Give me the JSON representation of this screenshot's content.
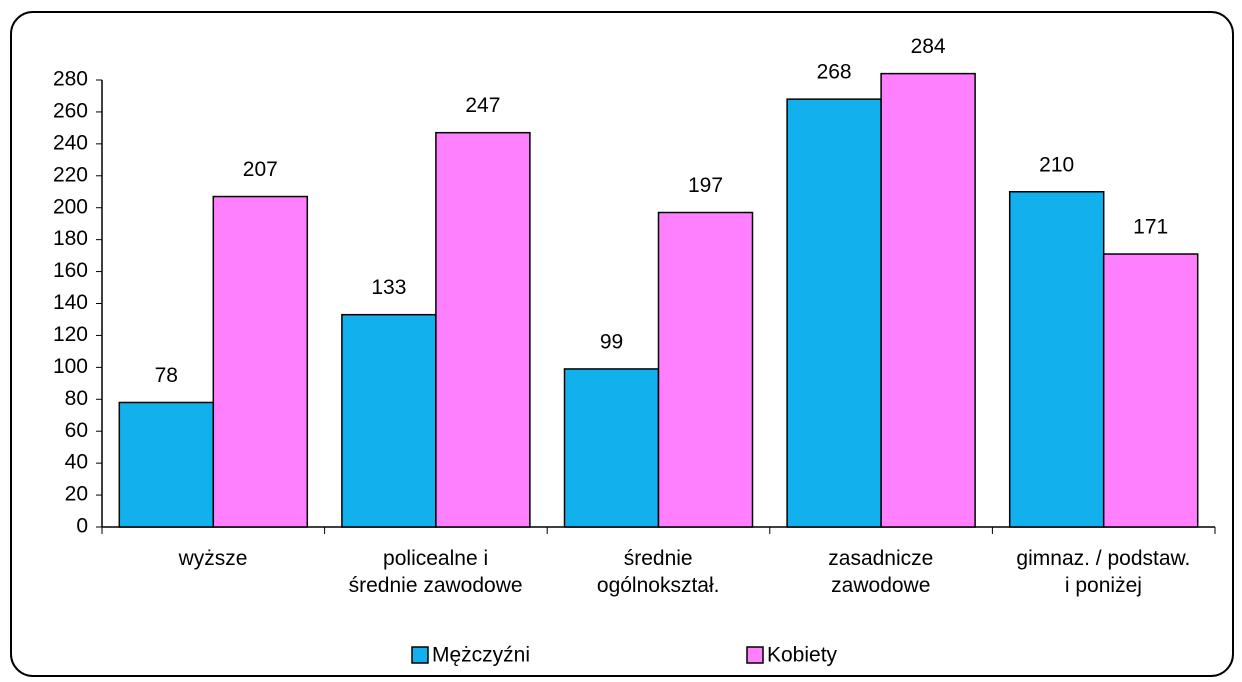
{
  "chart_data": {
    "type": "bar",
    "categories": [
      "wyższe",
      "policealne i\nśrednie zawodowe",
      "średnie\nogólnokształ.",
      "zasadnicze\nzawodowe",
      "gimnaz. / podstaw.\ni poniżej"
    ],
    "series": [
      {
        "name": "Mężczyźni",
        "color": "#12b0ec",
        "values": [
          78,
          133,
          99,
          268,
          210
        ]
      },
      {
        "name": "Kobiety",
        "color": "#ff80ff",
        "values": [
          207,
          247,
          197,
          284,
          171
        ]
      }
    ],
    "ylim": [
      0,
      280
    ],
    "yticks": [
      0,
      20,
      40,
      60,
      80,
      100,
      120,
      140,
      160,
      180,
      200,
      220,
      240,
      260,
      280
    ],
    "grid": false,
    "legend": "bottom"
  }
}
